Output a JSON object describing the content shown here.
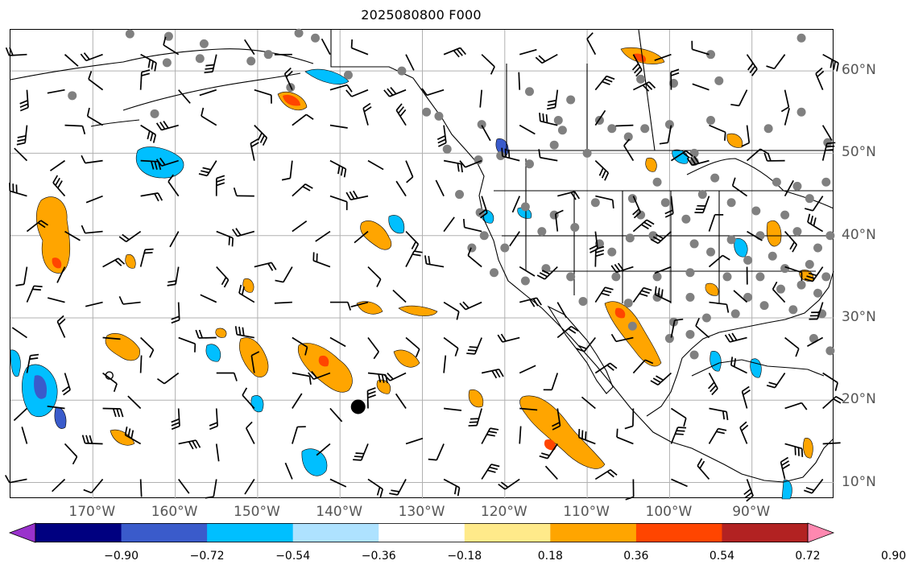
{
  "title": "2025080800 F000",
  "map": {
    "lon_min": -180,
    "lon_max": -80,
    "lat_min": 8,
    "lat_max": 65,
    "lon_ticks": [
      {
        "value": -170,
        "label": "170°W"
      },
      {
        "value": -160,
        "label": "160°W"
      },
      {
        "value": -150,
        "label": "150°W"
      },
      {
        "value": -140,
        "label": "140°W"
      },
      {
        "value": -130,
        "label": "130°W"
      },
      {
        "value": -120,
        "label": "120°W"
      },
      {
        "value": -110,
        "label": "110°W"
      },
      {
        "value": -100,
        "label": "100°W"
      },
      {
        "value": -90,
        "label": "90°W"
      }
    ],
    "lat_ticks": [
      {
        "value": 60,
        "label": "60°N"
      },
      {
        "value": 50,
        "label": "50°N"
      },
      {
        "value": 40,
        "label": "40°N"
      },
      {
        "value": 30,
        "label": "30°N"
      },
      {
        "value": 20,
        "label": "20°N"
      },
      {
        "value": 10,
        "label": "10°N"
      }
    ],
    "stations": [
      [
        -165.5,
        64.5
      ],
      [
        -160.8,
        64.2
      ],
      [
        -145.0,
        64.6
      ],
      [
        -143.0,
        64.0
      ],
      [
        -156.5,
        63.3
      ],
      [
        -150.8,
        61.2
      ],
      [
        -148.7,
        62.0
      ],
      [
        -161.0,
        61.0
      ],
      [
        -157.0,
        61.5
      ],
      [
        -172.5,
        57.0
      ],
      [
        -162.5,
        54.8
      ],
      [
        -146.0,
        58.0
      ],
      [
        -129.5,
        55.0
      ],
      [
        -139.0,
        59.5
      ],
      [
        -132.5,
        60.0
      ],
      [
        -128.0,
        54.5
      ],
      [
        -127.0,
        50.5
      ],
      [
        -123.2,
        49.2
      ],
      [
        -120.5,
        49.7
      ],
      [
        -117.0,
        48.7
      ],
      [
        -122.8,
        53.5
      ],
      [
        -117.0,
        57.5
      ],
      [
        -112.0,
        56.5
      ],
      [
        -107.0,
        53.0
      ],
      [
        -105.0,
        52.0
      ],
      [
        -110.0,
        50.0
      ],
      [
        -113.5,
        54.0
      ],
      [
        -113.0,
        52.8
      ],
      [
        -114.0,
        51.0
      ],
      [
        -108.5,
        54.0
      ],
      [
        -103.0,
        53.0
      ],
      [
        -100.0,
        53.5
      ],
      [
        -97.0,
        50.0
      ],
      [
        -99.5,
        58.5
      ],
      [
        -94.0,
        58.8
      ],
      [
        -88.0,
        53.0
      ],
      [
        -84.0,
        55.0
      ],
      [
        -80.8,
        51.3
      ],
      [
        -95.0,
        62.0
      ],
      [
        -84.0,
        64.0
      ],
      [
        -95.0,
        54.0
      ],
      [
        -103.5,
        59.0
      ],
      [
        -125.5,
        45.0
      ],
      [
        -123.0,
        42.8
      ],
      [
        -122.5,
        40.0
      ],
      [
        -124.0,
        38.5
      ],
      [
        -121.3,
        35.5
      ],
      [
        -120.0,
        38.5
      ],
      [
        -115.5,
        40.5
      ],
      [
        -117.5,
        43.5
      ],
      [
        -114.0,
        42.5
      ],
      [
        -111.5,
        41.0
      ],
      [
        -109.0,
        44.0
      ],
      [
        -104.5,
        44.5
      ],
      [
        -108.5,
        39.0
      ],
      [
        -104.8,
        39.7
      ],
      [
        -103.5,
        42.5
      ],
      [
        -100.5,
        44.0
      ],
      [
        -98.0,
        42.0
      ],
      [
        -96.0,
        45.0
      ],
      [
        -101.5,
        46.5
      ],
      [
        -97.0,
        49.0
      ],
      [
        -94.5,
        47.0
      ],
      [
        -92.5,
        44.0
      ],
      [
        -89.5,
        43.0
      ],
      [
        -89.0,
        40.0
      ],
      [
        -86.0,
        42.5
      ],
      [
        -84.5,
        40.5
      ],
      [
        -87.5,
        37.5
      ],
      [
        -90.5,
        37.0
      ],
      [
        -93.0,
        35.0
      ],
      [
        -95.0,
        38.0
      ],
      [
        -97.5,
        35.5
      ],
      [
        -101.5,
        35.0
      ],
      [
        -97.5,
        32.5
      ],
      [
        -95.5,
        30.0
      ],
      [
        -101.5,
        32.5
      ],
      [
        -100.0,
        27.5
      ],
      [
        -97.0,
        25.5
      ],
      [
        -97.5,
        28.0
      ],
      [
        -106.5,
        35.0
      ],
      [
        -110.5,
        32.0
      ],
      [
        -112.0,
        35.0
      ],
      [
        -117.5,
        34.5
      ],
      [
        -115.0,
        36.0
      ],
      [
        -105.0,
        31.8
      ],
      [
        -104.5,
        29.0
      ],
      [
        -99.5,
        29.5
      ],
      [
        -92.0,
        30.5
      ],
      [
        -90.5,
        32.5
      ],
      [
        -89.0,
        35.0
      ],
      [
        -86.5,
        33.5
      ],
      [
        -86.0,
        36.0
      ],
      [
        -84.0,
        34.0
      ],
      [
        -82.0,
        33.0
      ],
      [
        -83.0,
        36.5
      ],
      [
        -82.0,
        38.5
      ],
      [
        -80.5,
        40.0
      ],
      [
        -81.5,
        30.5
      ],
      [
        -82.5,
        27.5
      ],
      [
        -85.0,
        31.0
      ],
      [
        -88.5,
        31.5
      ],
      [
        -80.5,
        26.0
      ],
      [
        -84.5,
        46.0
      ],
      [
        -87.0,
        46.5
      ],
      [
        -83.0,
        44.5
      ],
      [
        -81.0,
        46.5
      ],
      [
        -81.0,
        35.0
      ],
      [
        -97.0,
        39.0
      ],
      [
        -92.5,
        39.5
      ],
      [
        -102.0,
        40.0
      ],
      [
        -107.0,
        38.0
      ]
    ],
    "high_marker": [
      -137.8,
      19.2
    ],
    "open_circles": [
      -168.0,
      23.0
    ]
  },
  "colorbar": {
    "colors": [
      "#9932cc",
      "#000080",
      "#3a5bcb",
      "#00bfff",
      "#aee2ff",
      "#ffffff",
      "#ffea8a",
      "#ffa500",
      "#ff4500",
      "#b22222",
      "#ff88b0"
    ],
    "tick_labels": [
      "−0.90",
      "−0.72",
      "−0.54",
      "−0.36",
      "−0.18",
      "0.18",
      "0.36",
      "0.54",
      "0.72",
      "0.90"
    ]
  }
}
